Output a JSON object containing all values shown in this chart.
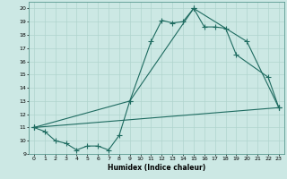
{
  "xlabel": "Humidex (Indice chaleur)",
  "bg_color": "#cce8e4",
  "line_color": "#1e6b60",
  "grid_color": "#b0d4ce",
  "xlim": [
    -0.5,
    23.5
  ],
  "ylim": [
    9,
    20.5
  ],
  "xticks": [
    0,
    1,
    2,
    3,
    4,
    5,
    6,
    7,
    8,
    9,
    10,
    11,
    12,
    13,
    14,
    15,
    16,
    17,
    18,
    19,
    20,
    21,
    22,
    23
  ],
  "yticks": [
    9,
    10,
    11,
    12,
    13,
    14,
    15,
    16,
    17,
    18,
    19,
    20
  ],
  "line1_x": [
    0,
    1,
    2,
    3,
    4,
    5,
    6,
    7,
    8,
    9,
    11,
    12,
    13,
    14,
    15,
    16,
    17,
    18,
    19,
    22,
    23
  ],
  "line1_y": [
    11.0,
    10.7,
    10.0,
    9.8,
    9.3,
    9.6,
    9.6,
    9.3,
    10.4,
    13.0,
    17.5,
    19.1,
    18.9,
    19.0,
    20.0,
    18.6,
    18.6,
    18.5,
    16.5,
    14.8,
    12.5
  ],
  "line2_x": [
    0,
    23
  ],
  "line2_y": [
    11.0,
    12.5
  ],
  "line3_x": [
    0,
    9,
    15,
    20,
    23
  ],
  "line3_y": [
    11.0,
    13.0,
    20.0,
    17.5,
    12.5
  ]
}
